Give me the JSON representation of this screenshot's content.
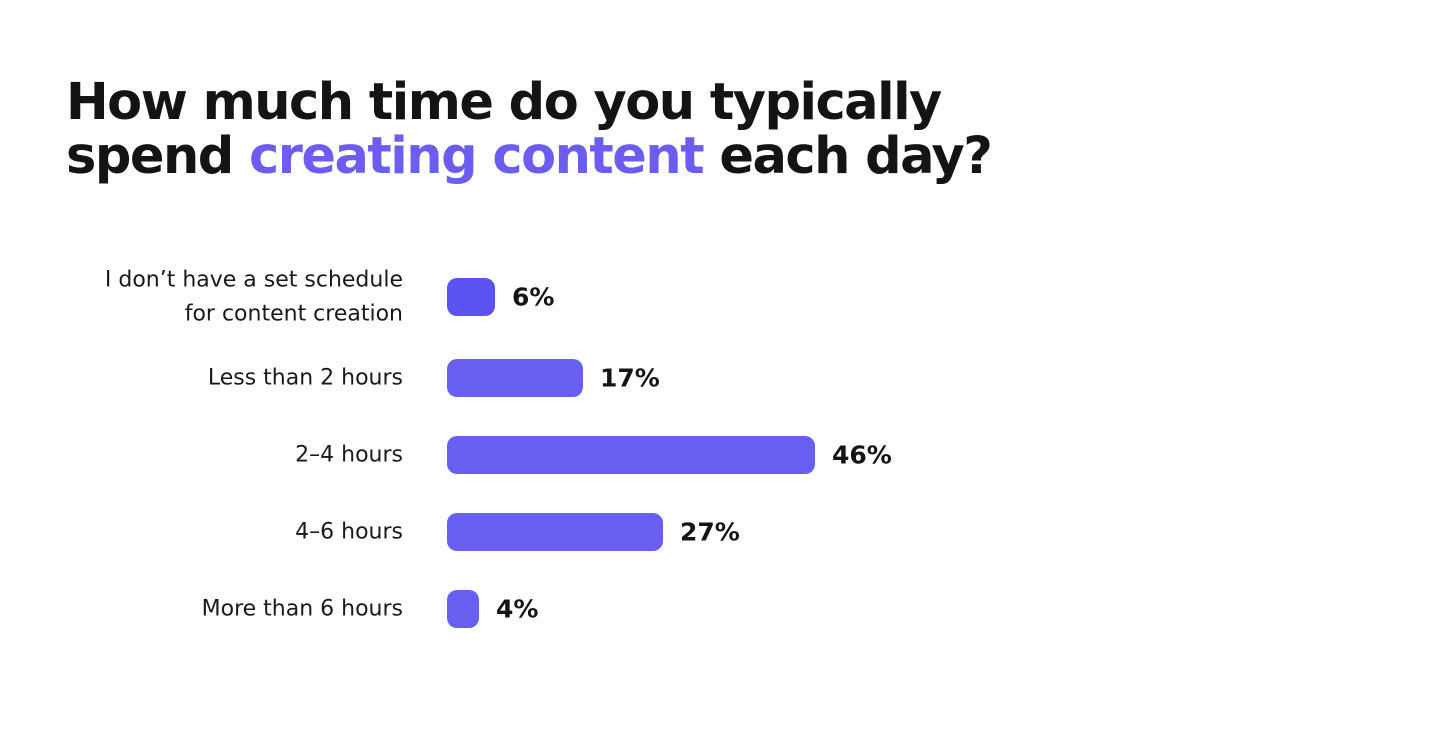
{
  "title": {
    "line1": "How much time do you typically",
    "line2_before": "spend ",
    "line2_accent": "creating content",
    "line2_after": " each day?"
  },
  "colors": {
    "text": "#141414",
    "accent": "#6b5df0",
    "bar": "#675ff2",
    "bar_first": "#5b52f3"
  },
  "chart_data": {
    "type": "bar",
    "orientation": "horizontal",
    "categories": [
      "I don’t have a set schedule for content creation",
      "Less than 2 hours",
      "2–4 hours",
      "4–6 hours",
      "More than 6 hours"
    ],
    "category_lines": [
      [
        "I don’t have a set schedule",
        "for content creation"
      ],
      [
        "Less than 2 hours"
      ],
      [
        "2–4 hours"
      ],
      [
        "4–6 hours"
      ],
      [
        "More than 6 hours"
      ]
    ],
    "values": [
      6,
      17,
      46,
      27,
      4
    ],
    "value_labels": [
      "6%",
      "17%",
      "46%",
      "27%",
      "4%"
    ],
    "unit": "%",
    "xlim": [
      0,
      50
    ],
    "grid": false,
    "legend": "none"
  }
}
